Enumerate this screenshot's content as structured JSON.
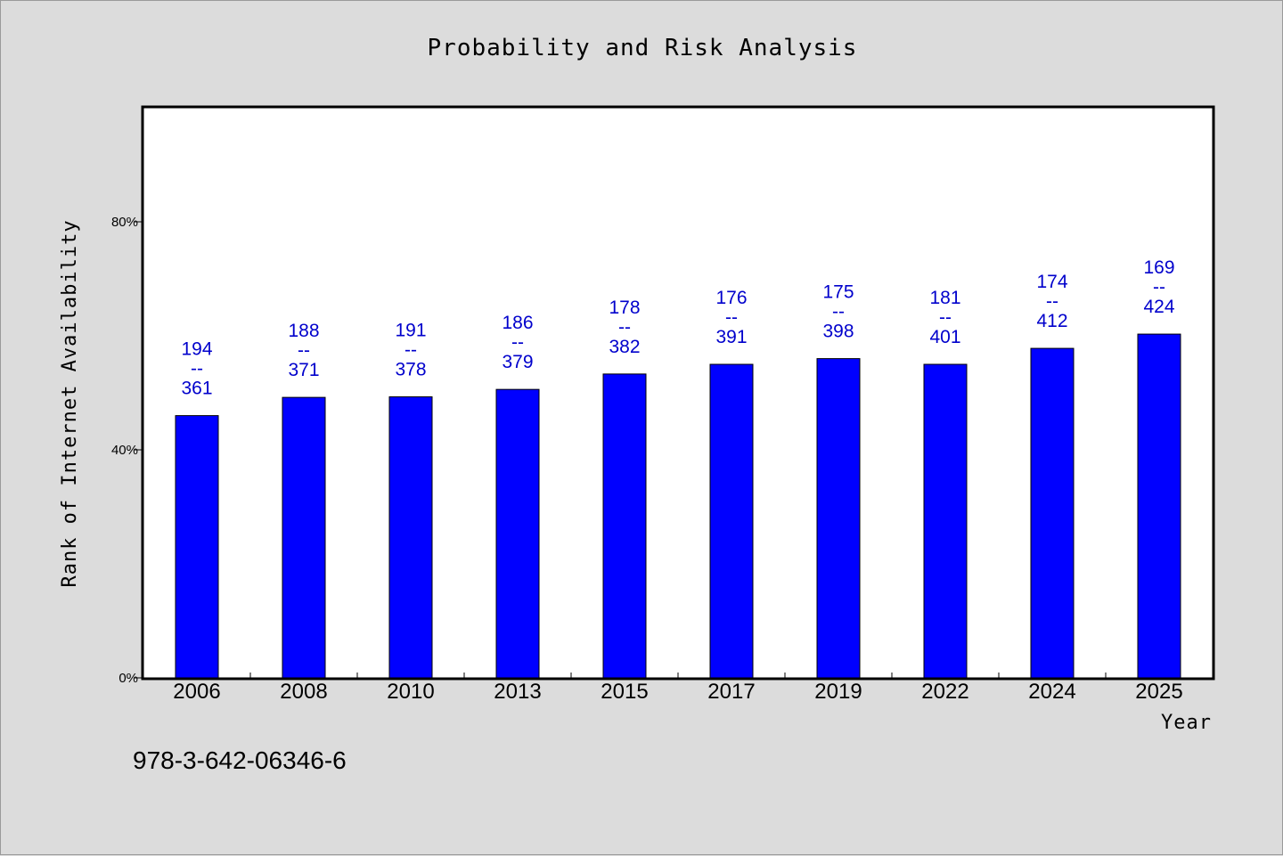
{
  "chart_data": {
    "type": "bar",
    "title": "Probability and Risk Analysis",
    "xlabel": "Year",
    "ylabel": "Rank of Internet Availability",
    "categories": [
      "2006",
      "2008",
      "2010",
      "2013",
      "2015",
      "2017",
      "2019",
      "2022",
      "2024",
      "2025"
    ],
    "values": [
      46,
      49.2,
      49.3,
      50.6,
      53.3,
      55,
      56,
      55,
      57.8,
      60.3
    ],
    "labels_top": [
      "194",
      "188",
      "191",
      "186",
      "178",
      "176",
      "175",
      "181",
      "174",
      "169"
    ],
    "labels_bottom": [
      "361",
      "371",
      "378",
      "379",
      "382",
      "391",
      "398",
      "401",
      "412",
      "424"
    ],
    "label_separator": "--",
    "ylim": [
      0,
      100
    ],
    "yticks": [
      0,
      40,
      80
    ],
    "ytick_labels": [
      "0%",
      "40%",
      "80%"
    ],
    "grid": false,
    "bar_color": "#0000ff",
    "label_color": "#0000cc"
  },
  "footer": {
    "isbn": "978-3-642-06346-6"
  }
}
